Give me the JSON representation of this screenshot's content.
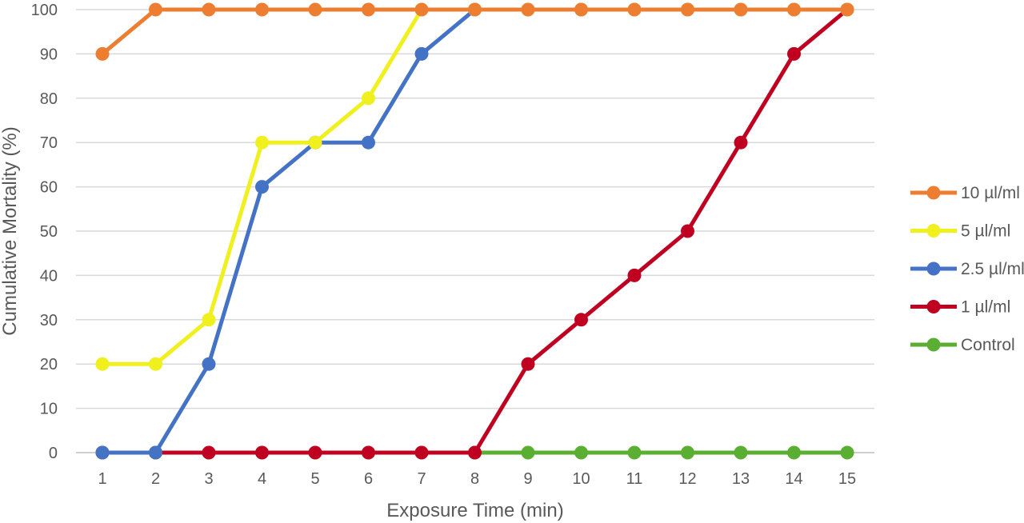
{
  "chart_data": {
    "type": "line",
    "xlabel": "Exposure Time (min)",
    "ylabel": "Cumulative Mortality (%)",
    "x": [
      1,
      2,
      3,
      4,
      5,
      6,
      7,
      8,
      9,
      10,
      11,
      12,
      13,
      14,
      15
    ],
    "ylim": [
      0,
      100
    ],
    "yticks": [
      0,
      10,
      20,
      30,
      40,
      50,
      60,
      70,
      80,
      90,
      100
    ],
    "grid": "horizontal",
    "legend_position": "right",
    "series": [
      {
        "name": "10 µl/ml",
        "color": "#ED7D31",
        "values": [
          90,
          100,
          100,
          100,
          100,
          100,
          100,
          100,
          100,
          100,
          100,
          100,
          100,
          100,
          100
        ]
      },
      {
        "name": "5 µl/ml",
        "color": "#F0F01E",
        "values": [
          20,
          20,
          30,
          70,
          70,
          80,
          100,
          100,
          100,
          100,
          100,
          100,
          100,
          100,
          100
        ]
      },
      {
        "name": "2.5 µl/ml",
        "color": "#4472C4",
        "values": [
          0,
          0,
          20,
          60,
          70,
          70,
          90,
          100,
          100,
          100,
          100,
          100,
          100,
          100,
          100
        ]
      },
      {
        "name": "1 µl/ml",
        "color": "#C00020",
        "values": [
          0,
          0,
          0,
          0,
          0,
          0,
          0,
          0,
          20,
          30,
          40,
          50,
          70,
          90,
          100
        ]
      },
      {
        "name": "Control",
        "color": "#5AAE32",
        "values": [
          0,
          0,
          0,
          0,
          0,
          0,
          0,
          0,
          0,
          0,
          0,
          0,
          0,
          0,
          0
        ]
      }
    ]
  }
}
